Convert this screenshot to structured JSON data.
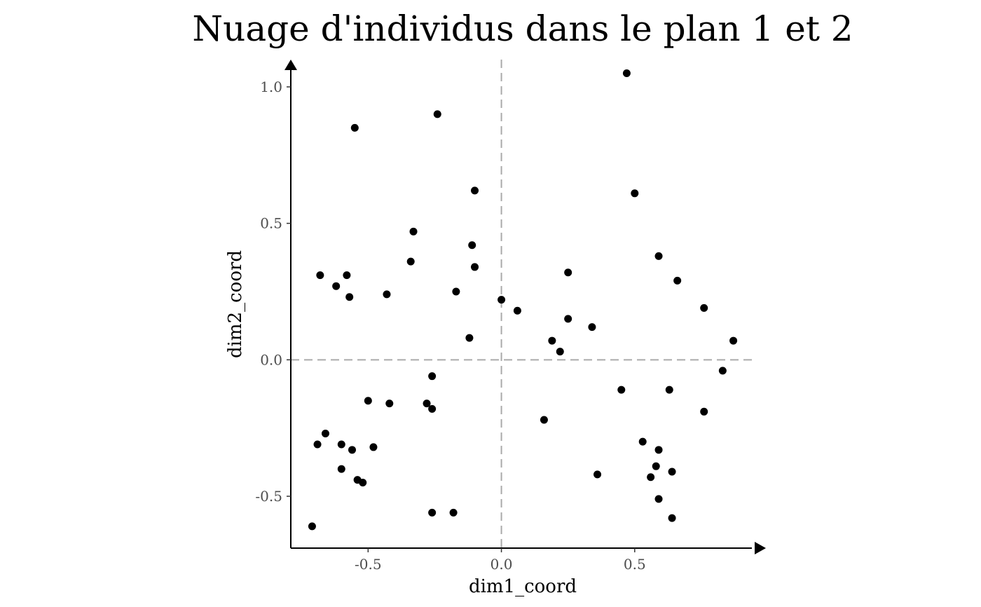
{
  "chart_data": {
    "type": "scatter",
    "title": "Nuage d'individus dans le plan 1 et 2",
    "xlabel": "dim1_coord",
    "ylabel": "dim2_coord",
    "xlim": [
      -0.79,
      0.95
    ],
    "ylim": [
      -0.69,
      1.1
    ],
    "xticks": [
      -0.5,
      0.0,
      0.5
    ],
    "xtick_labels": [
      "-0.5",
      "0.0",
      "0.5"
    ],
    "yticks": [
      -0.5,
      0.0,
      0.5,
      1.0
    ],
    "ytick_labels": [
      "-0.5",
      "0.0",
      "0.5",
      "1.0"
    ],
    "reference_lines": {
      "x": 0.0,
      "y": 0.0,
      "style": "dashed",
      "color": "#aaaaaa"
    },
    "grid": false,
    "point_color": "#000000",
    "points": [
      {
        "x": 0.47,
        "y": 1.05
      },
      {
        "x": -0.24,
        "y": 0.9
      },
      {
        "x": -0.55,
        "y": 0.85
      },
      {
        "x": -0.1,
        "y": 0.62
      },
      {
        "x": 0.5,
        "y": 0.61
      },
      {
        "x": -0.33,
        "y": 0.47
      },
      {
        "x": -0.11,
        "y": 0.42
      },
      {
        "x": -0.34,
        "y": 0.36
      },
      {
        "x": -0.1,
        "y": 0.34
      },
      {
        "x": 0.59,
        "y": 0.38
      },
      {
        "x": -0.68,
        "y": 0.31
      },
      {
        "x": -0.58,
        "y": 0.31
      },
      {
        "x": -0.62,
        "y": 0.27
      },
      {
        "x": 0.25,
        "y": 0.32
      },
      {
        "x": 0.66,
        "y": 0.29
      },
      {
        "x": -0.57,
        "y": 0.23
      },
      {
        "x": -0.43,
        "y": 0.24
      },
      {
        "x": -0.17,
        "y": 0.25
      },
      {
        "x": 0.0,
        "y": 0.22
      },
      {
        "x": 0.06,
        "y": 0.18
      },
      {
        "x": 0.76,
        "y": 0.19
      },
      {
        "x": 0.25,
        "y": 0.15
      },
      {
        "x": 0.34,
        "y": 0.12
      },
      {
        "x": -0.12,
        "y": 0.08
      },
      {
        "x": 0.19,
        "y": 0.07
      },
      {
        "x": 0.87,
        "y": 0.07
      },
      {
        "x": 0.22,
        "y": 0.03
      },
      {
        "x": 0.83,
        "y": -0.04
      },
      {
        "x": -0.26,
        "y": -0.06
      },
      {
        "x": 0.45,
        "y": -0.11
      },
      {
        "x": 0.63,
        "y": -0.11
      },
      {
        "x": -0.5,
        "y": -0.15
      },
      {
        "x": -0.42,
        "y": -0.16
      },
      {
        "x": -0.28,
        "y": -0.16
      },
      {
        "x": -0.26,
        "y": -0.18
      },
      {
        "x": 0.76,
        "y": -0.19
      },
      {
        "x": 0.16,
        "y": -0.22
      },
      {
        "x": -0.66,
        "y": -0.27
      },
      {
        "x": -0.69,
        "y": -0.31
      },
      {
        "x": -0.6,
        "y": -0.31
      },
      {
        "x": -0.56,
        "y": -0.33
      },
      {
        "x": -0.48,
        "y": -0.32
      },
      {
        "x": 0.53,
        "y": -0.3
      },
      {
        "x": 0.59,
        "y": -0.33
      },
      {
        "x": 0.58,
        "y": -0.39
      },
      {
        "x": -0.6,
        "y": -0.4
      },
      {
        "x": 0.36,
        "y": -0.42
      },
      {
        "x": 0.64,
        "y": -0.41
      },
      {
        "x": 0.56,
        "y": -0.43
      },
      {
        "x": -0.54,
        "y": -0.44
      },
      {
        "x": -0.52,
        "y": -0.45
      },
      {
        "x": 0.59,
        "y": -0.51
      },
      {
        "x": -0.26,
        "y": -0.56
      },
      {
        "x": -0.18,
        "y": -0.56
      },
      {
        "x": 0.64,
        "y": -0.58
      },
      {
        "x": -0.71,
        "y": -0.61
      }
    ]
  }
}
